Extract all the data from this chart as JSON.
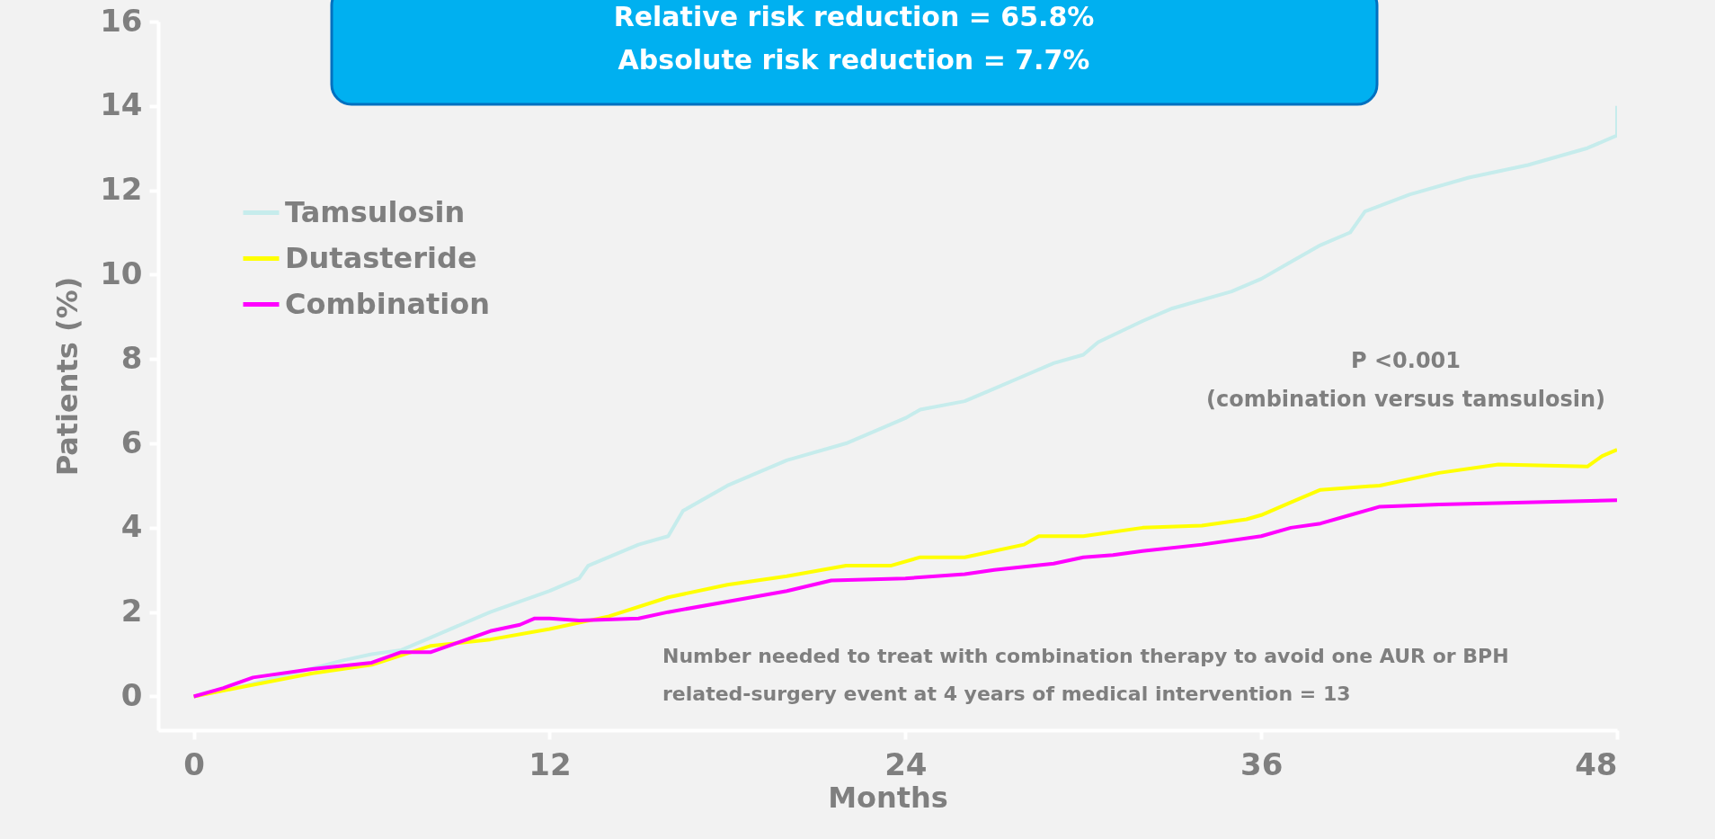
{
  "chart_data": {
    "type": "line",
    "xlabel": "Months",
    "ylabel": "Patients (%)",
    "xlim": [
      -1.2,
      48
    ],
    "xticks": [
      0,
      12,
      24,
      36,
      48
    ],
    "ylim": [
      -0.8,
      16
    ],
    "yticks": [
      0,
      2,
      4,
      6,
      8,
      10,
      12,
      14,
      16
    ],
    "grid": false,
    "legend": "top left",
    "marker": "none",
    "line_style": "solid",
    "annotations": [
      "Relative risk reduction = 65.8%",
      "Absolute risk reduction = 7.7%",
      "P <0.001",
      "(combination versus tamsulosin)",
      "Number needed to treat with combination therapy to avoid one AUR or BPH",
      "related-surgery event at 4 years of medical intervention = 13"
    ],
    "series": [
      {
        "name": "Tamsulosin",
        "color": "#c6ecec",
        "x": [
          0,
          2,
          5,
          6,
          7,
          8,
          10,
          12,
          13,
          13.3,
          15,
          16,
          16.5,
          18,
          20,
          22,
          24,
          24.5,
          26,
          27,
          28,
          29,
          30,
          30.5,
          32,
          33,
          35,
          36,
          37,
          38,
          39,
          39.5,
          41,
          43,
          45,
          47,
          48,
          48
        ],
        "values": [
          0,
          0.3,
          0.85,
          1.0,
          1.1,
          1.4,
          2.0,
          2.5,
          2.8,
          3.1,
          3.6,
          3.8,
          4.4,
          5.0,
          5.6,
          6.0,
          6.6,
          6.8,
          7.0,
          7.3,
          7.6,
          7.9,
          8.1,
          8.4,
          8.9,
          9.2,
          9.6,
          9.9,
          10.3,
          10.7,
          11.0,
          11.5,
          11.9,
          12.3,
          12.6,
          13.0,
          13.3,
          14.0
        ]
      },
      {
        "name": "Dutasteride",
        "color": "#ffff00",
        "x": [
          0,
          4,
          6,
          8,
          10,
          12,
          14,
          16,
          18,
          20,
          22,
          23.5,
          24.5,
          26,
          28,
          28.5,
          30,
          32,
          34,
          35.5,
          36,
          37,
          38,
          40,
          42,
          44,
          47,
          47.5,
          48
        ],
        "values": [
          0,
          0.55,
          0.75,
          1.2,
          1.35,
          1.6,
          1.9,
          2.35,
          2.65,
          2.85,
          3.1,
          3.1,
          3.3,
          3.3,
          3.6,
          3.8,
          3.8,
          4.0,
          4.05,
          4.2,
          4.3,
          4.6,
          4.9,
          5.0,
          5.3,
          5.5,
          5.45,
          5.7,
          5.85
        ]
      },
      {
        "name": "Combination",
        "color": "#ff00ff",
        "x": [
          0,
          1,
          2,
          4,
          6,
          7,
          8,
          10,
          11,
          11.5,
          12,
          13,
          15,
          16,
          18,
          20,
          21.5,
          24,
          26,
          27,
          29,
          30,
          31,
          32,
          34,
          36,
          37,
          38,
          39,
          40,
          42,
          48
        ],
        "values": [
          0,
          0.2,
          0.45,
          0.65,
          0.8,
          1.05,
          1.05,
          1.55,
          1.7,
          1.85,
          1.85,
          1.8,
          1.85,
          2.0,
          2.25,
          2.5,
          2.75,
          2.8,
          2.9,
          3.0,
          3.15,
          3.3,
          3.35,
          3.45,
          3.6,
          3.8,
          4.0,
          4.1,
          4.3,
          4.5,
          4.55,
          4.65
        ]
      }
    ]
  }
}
